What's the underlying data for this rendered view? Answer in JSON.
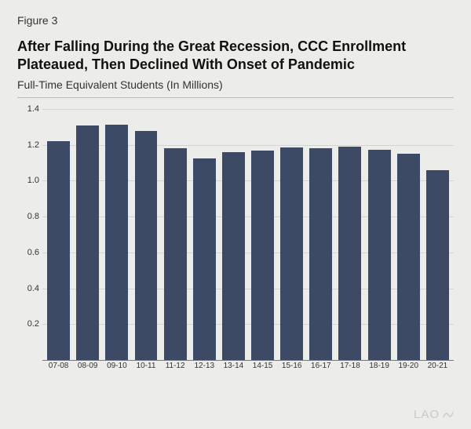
{
  "figure_label": "Figure 3",
  "title_line1": "After Falling During the Great Recession, CCC Enrollment",
  "title_line2": "Plateaued, Then Declined With Onset of Pandemic",
  "subtitle": "Full-Time Equivalent Students (In Millions)",
  "watermark_text": "LAO",
  "chart": {
    "type": "bar",
    "categories": [
      "07-08",
      "08-09",
      "09-10",
      "10-11",
      "11-12",
      "12-13",
      "13-14",
      "14-15",
      "15-16",
      "16-17",
      "17-18",
      "18-19",
      "19-20",
      "20-21"
    ],
    "values": [
      1.22,
      1.31,
      1.315,
      1.28,
      1.18,
      1.125,
      1.16,
      1.17,
      1.185,
      1.18,
      1.19,
      1.175,
      1.15,
      1.06
    ],
    "bar_color": "#3d4a66",
    "background_color": "#ececea",
    "grid_color": "#d4d4d2",
    "axis_color": "#777777",
    "text_color": "#333333",
    "ylim": [
      0,
      1.4
    ],
    "ytick_step": 0.2,
    "yticks": [
      0.2,
      0.4,
      0.6,
      0.8,
      1.0,
      1.2,
      1.4
    ],
    "ytick_labels": [
      "0.2",
      "0.4",
      "0.6",
      "0.8",
      "1.0",
      "1.2",
      "1.4"
    ],
    "bar_width": 0.78,
    "tick_fontsize": 11,
    "xlabel_fontsize": 10,
    "title_fontsize": 18,
    "subtitle_fontsize": 14
  }
}
